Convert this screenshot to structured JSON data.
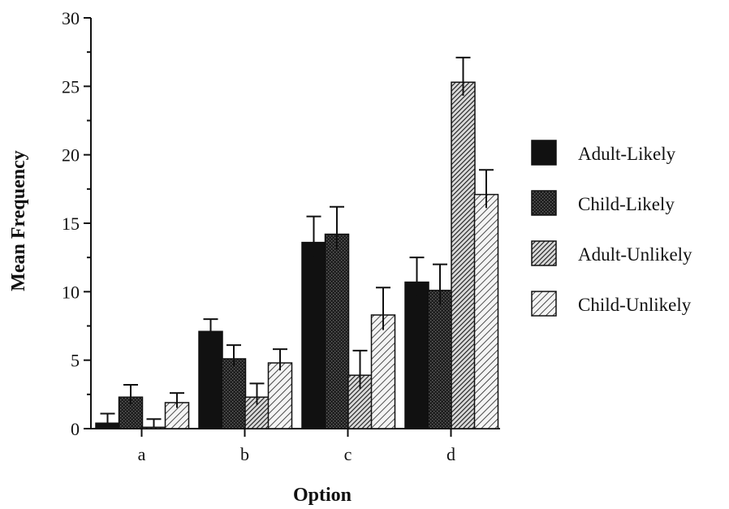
{
  "chart_data": {
    "type": "bar",
    "xlabel": "Option",
    "ylabel": "Mean Frequency",
    "categories": [
      "a",
      "b",
      "c",
      "d"
    ],
    "ylim": [
      0,
      30
    ],
    "yticks": [
      0,
      5,
      10,
      15,
      20,
      25,
      30
    ],
    "grid": false,
    "legend_position": "right",
    "series": [
      {
        "name": "Adult-Likely",
        "values": [
          0.4,
          7.1,
          13.6,
          10.7
        ],
        "errors": [
          0.7,
          0.9,
          1.9,
          1.8
        ],
        "fill": "solid",
        "color": "#111111"
      },
      {
        "name": "Child-Likely",
        "values": [
          2.3,
          5.1,
          14.2,
          10.1
        ],
        "errors": [
          0.9,
          1.0,
          2.0,
          1.9
        ],
        "fill": "dark-stipple",
        "color": "#2a2a2a"
      },
      {
        "name": "Adult-Unlikely",
        "values": [
          0.1,
          2.3,
          3.9,
          25.3
        ],
        "errors": [
          0.6,
          1.0,
          1.8,
          1.8
        ],
        "fill": "dense-diagonal-hatch",
        "color": "#555555"
      },
      {
        "name": "Child-Unlikely",
        "values": [
          1.9,
          4.8,
          8.3,
          17.1
        ],
        "errors": [
          0.7,
          1.0,
          2.0,
          1.8
        ],
        "fill": "light-diagonal-hatch",
        "color": "#777777"
      }
    ]
  }
}
